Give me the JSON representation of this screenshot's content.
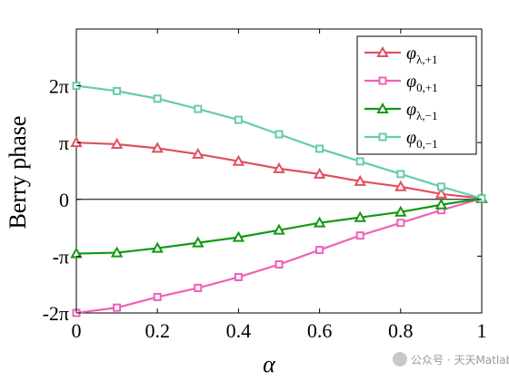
{
  "chart_data": {
    "type": "line",
    "xlabel": "α",
    "ylabel": "Berry phase",
    "xlim": [
      0,
      1
    ],
    "ylim": [
      -6.283,
      9.42
    ],
    "grid": false,
    "legend_position": "top-right",
    "x": [
      0,
      0.1,
      0.2,
      0.3,
      0.4,
      0.5,
      0.6,
      0.7,
      0.8,
      0.9,
      1.0
    ],
    "x_ticks": [
      {
        "value": 0,
        "label": "0"
      },
      {
        "value": 0.2,
        "label": "0.2"
      },
      {
        "value": 0.4,
        "label": "0.4"
      },
      {
        "value": 0.6,
        "label": "0.6"
      },
      {
        "value": 0.8,
        "label": "0.8"
      },
      {
        "value": 1,
        "label": "1"
      }
    ],
    "y_ticks": [
      {
        "value": -6.283,
        "label": "-2π"
      },
      {
        "value": -3.1416,
        "label": "-π"
      },
      {
        "value": 0,
        "label": "0"
      },
      {
        "value": 3.1416,
        "label": "π"
      },
      {
        "value": 6.283,
        "label": "2π"
      }
    ],
    "series": [
      {
        "name": "φλ,+1",
        "symbol": "φ",
        "subscript": "λ,+1",
        "color": "#e0505f",
        "marker": "triangle",
        "values": [
          3.14,
          3.05,
          2.83,
          2.5,
          2.11,
          1.7,
          1.4,
          1.0,
          0.7,
          0.3,
          0.05
        ]
      },
      {
        "name": "φ0,+1",
        "symbol": "φ",
        "subscript": "0,+1",
        "color": "#f060b8",
        "marker": "square",
        "values": [
          -6.28,
          -5.99,
          -5.4,
          -4.9,
          -4.3,
          -3.6,
          -2.8,
          -2.0,
          -1.3,
          -0.6,
          0.05
        ]
      },
      {
        "name": "φλ,−1",
        "symbol": "φ",
        "subscript": "λ,−1",
        "color": "#119911",
        "marker": "triangle",
        "values": [
          -3.0,
          -2.95,
          -2.7,
          -2.4,
          -2.1,
          -1.7,
          -1.3,
          -1.0,
          -0.7,
          -0.3,
          0.05
        ]
      },
      {
        "name": "φ0,−1",
        "symbol": "φ",
        "subscript": "0,−1",
        "color": "#66ccaa",
        "marker": "square",
        "values": [
          6.28,
          5.99,
          5.57,
          5.0,
          4.4,
          3.6,
          2.8,
          2.1,
          1.4,
          0.7,
          0.05
        ]
      }
    ]
  },
  "watermark": "公众号 · 天天Matlab"
}
